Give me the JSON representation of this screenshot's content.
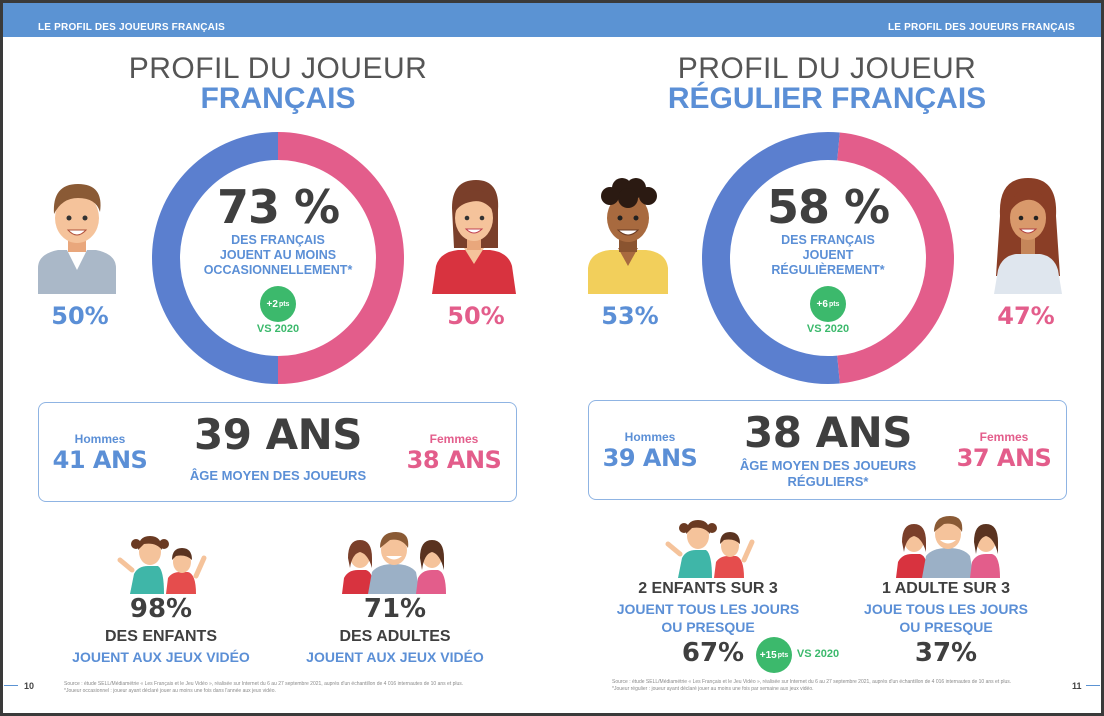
{
  "header": {
    "left_tag": "LE PROFIL DES JOUEURS FRANÇAIS",
    "right_tag": "LE PROFIL DES JOUEURS FRANÇAIS"
  },
  "colors": {
    "blue": "#5b8fd6",
    "pink": "#e35d8b",
    "green": "#3cb96c",
    "dark": "#3f3f3f"
  },
  "left": {
    "title_line1": "PROFIL DU JOUEUR",
    "title_line2": "FRANÇAIS",
    "donut": {
      "male_pct": 50,
      "female_pct": 50
    },
    "center_pct": "73 %",
    "center_text": [
      "DES FRANÇAIS",
      "JOUENT AU MOINS",
      "OCCASIONNELLEMENT*"
    ],
    "badge_value": "+2",
    "badge_unit": "pts",
    "vs": "VS 2020",
    "men_pct": "50%",
    "women_pct": "50%",
    "age": {
      "men_label": "Hommes",
      "men_value": "41 ANS",
      "main": "39 ANS",
      "sub": [
        "ÂGE MOYEN DES JOUEURS"
      ],
      "women_label": "Femmes",
      "women_value": "38 ANS"
    },
    "kids": {
      "pct": "98%",
      "line1": "DES ENFANTS",
      "line2": "JOUENT AUX JEUX VIDÉO"
    },
    "adults": {
      "pct": "71%",
      "line1": "DES ADULTES",
      "line2": "JOUENT AUX JEUX VIDÉO"
    },
    "footnote": [
      "Source : étude SELL/Médiamétrie « Les Français et le Jeu Vidéo », réalisée sur Internet du 6 au 27 septembre 2021, auprès d'un échantillon de 4 016 internautes de 10 ans et plus.",
      "*Joueur occasionnel : joueur ayant déclaré jouer au moins une fois dans l'année aux jeux vidéo."
    ],
    "page_number": "10"
  },
  "right": {
    "title_line1": "PROFIL DU JOUEUR",
    "title_line2": "RÉGULIER FRANÇAIS",
    "donut": {
      "male_pct": 53,
      "female_pct": 47
    },
    "center_pct": "58 %",
    "center_text": [
      "DES FRANÇAIS",
      "JOUENT",
      "RÉGULIÈREMENT*"
    ],
    "badge_value": "+6",
    "badge_unit": "pts",
    "vs": "VS 2020",
    "men_pct": "53%",
    "women_pct": "47%",
    "age": {
      "men_label": "Hommes",
      "men_value": "39 ANS",
      "main": "38 ANS",
      "sub": [
        "ÂGE MOYEN DES JOUEURS",
        "RÉGULIERS*"
      ],
      "women_label": "Femmes",
      "women_value": "37 ANS"
    },
    "kids": {
      "line0": "2 ENFANTS SUR 3",
      "line1": "JOUENT TOUS LES JOURS",
      "line2": "OU PRESQUE",
      "pct": "67%",
      "badge_value": "+15",
      "badge_unit": "pts",
      "vs": "VS 2020"
    },
    "adults": {
      "line0": "1 ADULTE SUR 3",
      "line1": "JOUE TOUS LES JOURS",
      "line2": "OU PRESQUE",
      "pct": "37%"
    },
    "footnote": [
      "Source : étude SELL/Médiamétrie « Les Français et le Jeu Vidéo », réalisée sur Internet du 6 au 27 septembre 2021, auprès d'un échantillon de 4 016 internautes de 10 ans et plus.",
      "*Joueur régulier : joueur ayant déclaré jouer au moins une fois par semaine aux jeux vidéo."
    ],
    "page_number": "11"
  }
}
